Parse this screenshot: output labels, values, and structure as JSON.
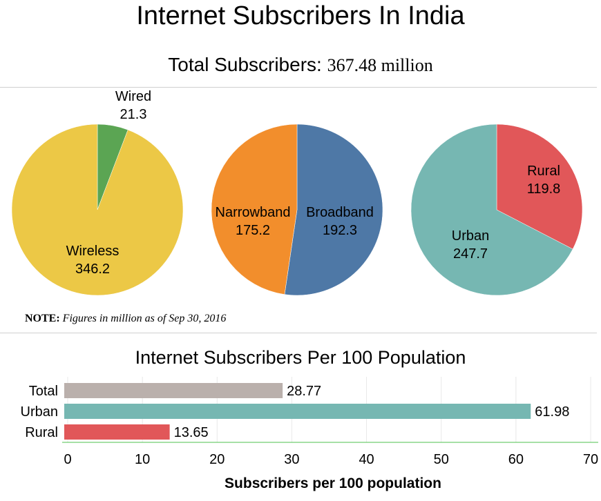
{
  "title": "Internet Subscribers In India",
  "total": {
    "label": "Total Subscribers:",
    "value": "367.48 million"
  },
  "note": {
    "label": "NOTE:",
    "text": "Figures in million as of  Sep 30, 2016"
  },
  "chart_data": [
    {
      "type": "pie",
      "title": "",
      "slices": [
        {
          "name": "Wired",
          "value": 21.3,
          "color": "#5ba553"
        },
        {
          "name": "Wireless",
          "value": 346.2,
          "color": "#ecc846"
        }
      ]
    },
    {
      "type": "pie",
      "title": "",
      "slices": [
        {
          "name": "Broadband",
          "value": 192.3,
          "color": "#4e78a6"
        },
        {
          "name": "Narrowband",
          "value": 175.2,
          "color": "#f28e2c"
        }
      ]
    },
    {
      "type": "pie",
      "title": "",
      "slices": [
        {
          "name": "Rural",
          "value": 119.8,
          "color": "#e15759"
        },
        {
          "name": "Urban",
          "value": 247.7,
          "color": "#76b7b2"
        }
      ]
    },
    {
      "type": "bar",
      "orientation": "horizontal",
      "title": "Internet Subscribers Per 100 Population",
      "categories": [
        "Total",
        "Urban",
        "Rural"
      ],
      "values": [
        28.77,
        61.98,
        13.65
      ],
      "value_labels": [
        "28.77",
        "61.98",
        "13.65"
      ],
      "colors": [
        "#bab0ac",
        "#76b7b2",
        "#e15759"
      ],
      "xlabel": "Subscribers per 100 population",
      "xlim": [
        0,
        70
      ],
      "xticks": [
        "0",
        "10",
        "20",
        "30",
        "40",
        "50",
        "60",
        "70"
      ],
      "grid": true
    }
  ]
}
